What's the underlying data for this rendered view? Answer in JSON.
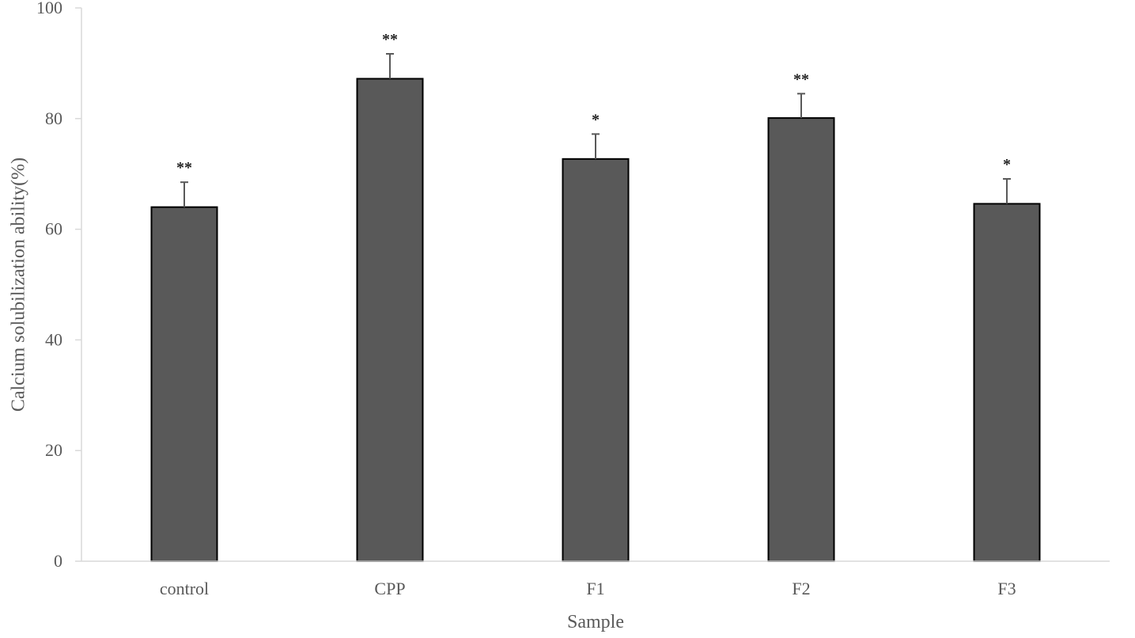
{
  "chart_data": {
    "type": "bar",
    "categories": [
      "control",
      "CPP",
      "F1",
      "F2",
      "F3"
    ],
    "values": [
      64,
      87.2,
      72.7,
      80.1,
      64.6
    ],
    "error_plus": [
      4.5,
      4.5,
      4.5,
      4.4,
      4.5
    ],
    "significance": [
      "**",
      "**",
      "*",
      "**",
      "*"
    ],
    "xlabel": "Sample",
    "ylabel": "Calcium solubilization ability(%)",
    "ylim": [
      0,
      100
    ],
    "yticks": [
      0,
      20,
      40,
      60,
      80,
      100
    ],
    "grid": false,
    "legend": "none",
    "colors": {
      "bar_fill": "#595959",
      "bar_stroke": "#000000",
      "axis": "#d9d9d9",
      "error_bar": "#595959",
      "tick_text": "#595959"
    }
  }
}
